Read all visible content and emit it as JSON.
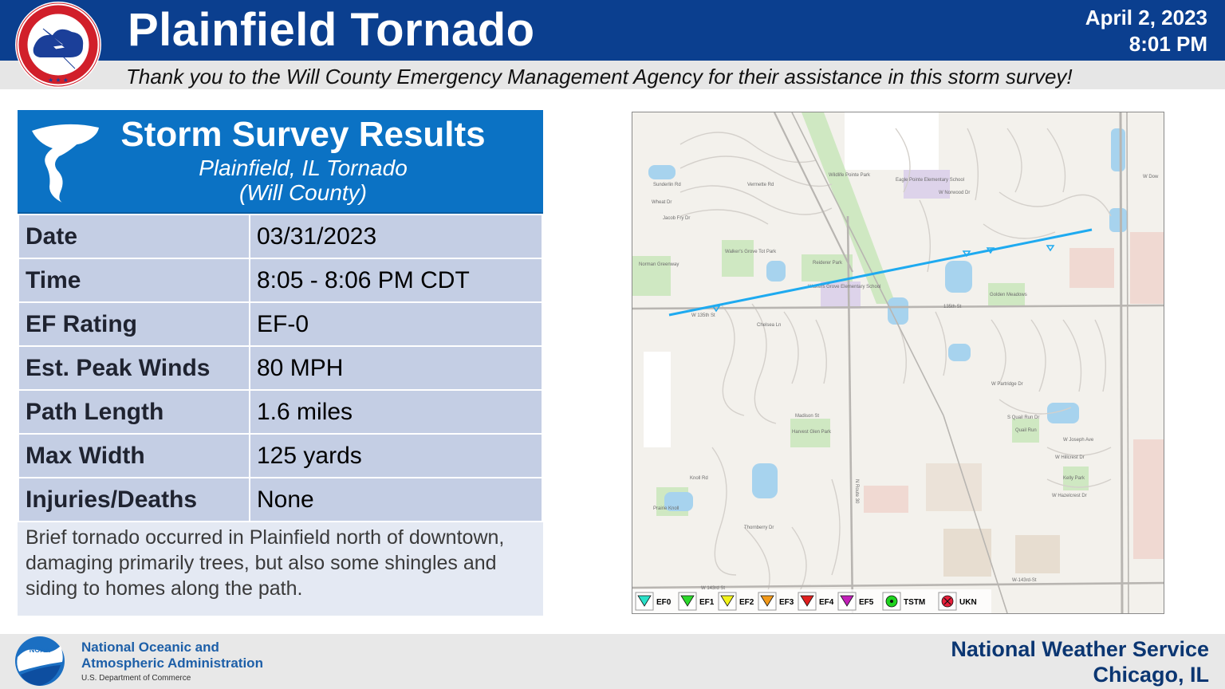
{
  "header": {
    "title": "Plainfield Tornado",
    "date": "April 2, 2023",
    "time": "8:01 PM",
    "thanks": "Thank you to the Will County Emergency Management Agency for their assistance in this storm survey!",
    "logo_text": "NATIONAL WEATHER SERVICE"
  },
  "card": {
    "title": "Storm Survey Results",
    "subtitle_line1": "Plainfield, IL Tornado",
    "subtitle_line2": "(Will County)",
    "rows": [
      {
        "label": "Date",
        "value": "03/31/2023"
      },
      {
        "label": "Time",
        "value": "8:05 - 8:06 PM CDT"
      },
      {
        "label": "EF Rating",
        "value": "EF-0"
      },
      {
        "label": "Est. Peak Winds",
        "value": "80 MPH"
      },
      {
        "label": "Path Length",
        "value": "1.6 miles"
      },
      {
        "label": "Max Width",
        "value": "125 yards"
      },
      {
        "label": "Injuries/Deaths",
        "value": "None"
      }
    ],
    "description": "Brief tornado occurred in Plainfield north of downtown, damaging primarily trees, but also some shingles and siding to homes along the path."
  },
  "map": {
    "labels": {
      "street_135": "135th St",
      "street_135w": "W 135th St",
      "street_143": "W 143rd St",
      "street_143w": "W-143rd-St",
      "route30": "N Route 30",
      "norman": "Norman Greenway",
      "walkers": "Walker's Grove Tot Park",
      "reiderer": "Reiderer Park",
      "wg_school": "Walkers Grove Elementary School",
      "eagle": "Eagle Pointe Elementary School",
      "golden": "Golden Meadows",
      "wildlife": "Wildlife Pointe Park",
      "harvest": "Harvest Glen Park",
      "quail": "Quail Run",
      "kelly": "Kelly Park",
      "prairie": "Prairie Knoll",
      "chelsea": "Chelsea Ln",
      "madison": "Madison St",
      "knoll": "Knoll Rd",
      "thornberry": "Thornberry Dr",
      "partridge": "W Partridge Dr",
      "joseph": "W Joseph Ave",
      "hillcrest": "W Hillcrest Dr",
      "hazelcrest": "W Hazelcrest Dr",
      "norwood": "W Norwood Dr",
      "vermette": "Vermette Rd",
      "jacob": "Jacob Fry Dr",
      "wheat": "Wheat Dr",
      "sunderlin": "Sunderlin Rd",
      "quailrun": "S Quail Run Dr",
      "wdow": "W Dow"
    },
    "legend": [
      {
        "label": "EF0",
        "color": "#29e0c8"
      },
      {
        "label": "EF1",
        "color": "#2bd92b"
      },
      {
        "label": "EF2",
        "color": "#f2f21a"
      },
      {
        "label": "EF3",
        "color": "#f29a1a"
      },
      {
        "label": "EF4",
        "color": "#e01f1f"
      },
      {
        "label": "EF5",
        "color": "#c21fb8"
      },
      {
        "label": "TSTM",
        "color": "#1fd41f"
      },
      {
        "label": "UKN",
        "color": "#e81f3a"
      }
    ],
    "track_color": "#1eaaf0"
  },
  "footer": {
    "noaa_line1": "National Oceanic and",
    "noaa_line2": "Atmospheric Administration",
    "noaa_line3": "U.S. Department of Commerce",
    "noaa_logo_text": "NOAA",
    "nws_line1": "National Weather Service",
    "nws_line2": "Chicago, IL"
  }
}
